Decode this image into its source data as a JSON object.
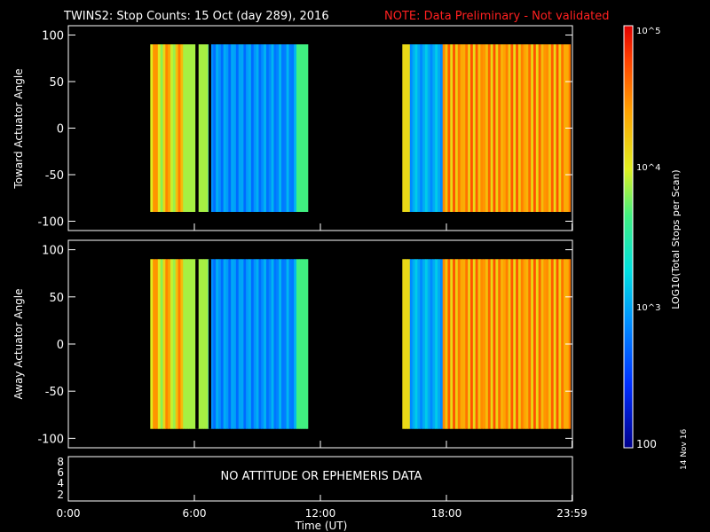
{
  "chart_data": {
    "type": "heatmap",
    "title": "TWINS2: Stop Counts: 15 Oct (day 289), 2016",
    "note": "NOTE: Data Preliminary - Not validated",
    "xlabel": "Time (UT)",
    "x_ticks": [
      "0:00",
      "6:00",
      "12:00",
      "18:00",
      "23:59"
    ],
    "x_tick_hours": [
      0,
      6,
      12,
      18,
      23.98
    ],
    "x_range_hours": [
      0,
      24
    ],
    "panels": [
      {
        "name": "toward",
        "ylabel": "Toward Actuator Angle",
        "ylim": [
          -110,
          110
        ],
        "y_ticks": [
          100,
          50,
          0,
          -50,
          -100
        ],
        "data_segments_hours": [
          [
            3.9,
            11.4
          ],
          [
            15.9,
            23.9
          ]
        ],
        "angle_range": [
          -90,
          90
        ]
      },
      {
        "name": "away",
        "ylabel": "Away Actuator Angle",
        "ylim": [
          -110,
          110
        ],
        "y_ticks": [
          100,
          50,
          0,
          -50,
          -100
        ],
        "data_segments_hours": [
          [
            3.9,
            11.4
          ],
          [
            15.9,
            23.9
          ]
        ],
        "angle_range": [
          -90,
          90
        ]
      }
    ],
    "colorbar": {
      "label": "LOG10(Total Stops per Scan)",
      "scale": "log",
      "range": [
        100,
        100000
      ],
      "ticks": [
        {
          "value": 100000,
          "label": "10^5"
        },
        {
          "value": 10000,
          "label": "10^4"
        },
        {
          "value": 1000,
          "label": "10^3"
        },
        {
          "value": 100,
          "label": "100"
        }
      ]
    },
    "ephemeris_panel": {
      "y_ticks": [
        "8",
        "6",
        "4",
        "2"
      ],
      "message": "NO ATTITUDE OR EPHEMERIS DATA"
    }
  },
  "print_date": "14 Nov 16"
}
